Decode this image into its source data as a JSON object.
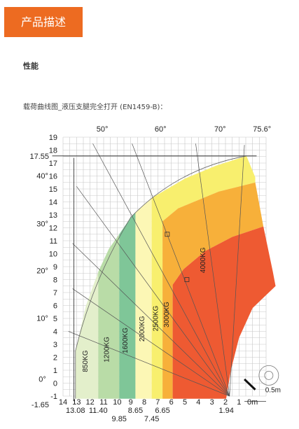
{
  "header": {
    "title": "产品描述"
  },
  "section": {
    "title": "性能",
    "caption": "载荷曲线图_液压支腿完全打开 (EN1459-B)："
  },
  "chart_data": {
    "type": "area",
    "xlim": [
      14,
      -1
    ],
    "ylim": [
      -1.65,
      19
    ],
    "x_ticks": [
      "14",
      "13",
      "12",
      "11",
      "10",
      "9",
      "8",
      "7",
      "6",
      "5",
      "4",
      "3",
      "2",
      "1",
      "0m"
    ],
    "x_special_labels": [
      "13.08",
      "11.40",
      "9.85",
      "8.65",
      "7.45",
      "6.65",
      "1.94"
    ],
    "y_ticks": [
      "19",
      "18",
      "17",
      "16",
      "15",
      "14",
      "13",
      "12",
      "11",
      "10",
      "9",
      "8",
      "7",
      "6",
      "5",
      "4",
      "3",
      "2",
      "1",
      "0",
      "-1"
    ],
    "y_special_labels": [
      "17.55",
      "-1.65"
    ],
    "angle_labels_left": [
      "40°",
      "30°",
      "20°",
      "10°",
      "0°"
    ],
    "angle_labels_top": [
      "50°",
      "60°",
      "70°",
      "75.6°"
    ],
    "zones": [
      {
        "label": "850KG",
        "color": "#e3efcb",
        "outer_x": 13.08
      },
      {
        "label": "1200KG",
        "color": "#b9dca7",
        "outer_x": 11.4
      },
      {
        "label": "1600KG",
        "color": "#7fc698",
        "outer_x": 9.85
      },
      {
        "label": "2000KG",
        "color": "#fcf7b5",
        "outer_x": 8.65
      },
      {
        "label": "2500KG",
        "color": "#f8ef6e",
        "outer_x": 7.45
      },
      {
        "label": "3000KG",
        "color": "#f7b03a",
        "outer_x": 6.65
      },
      {
        "label": "4000KG",
        "color": "#ee5a32"
      }
    ],
    "dimension_label": "0.5m",
    "max_height": 17.55,
    "max_reach": 13.08,
    "max_angle": 75.6
  }
}
